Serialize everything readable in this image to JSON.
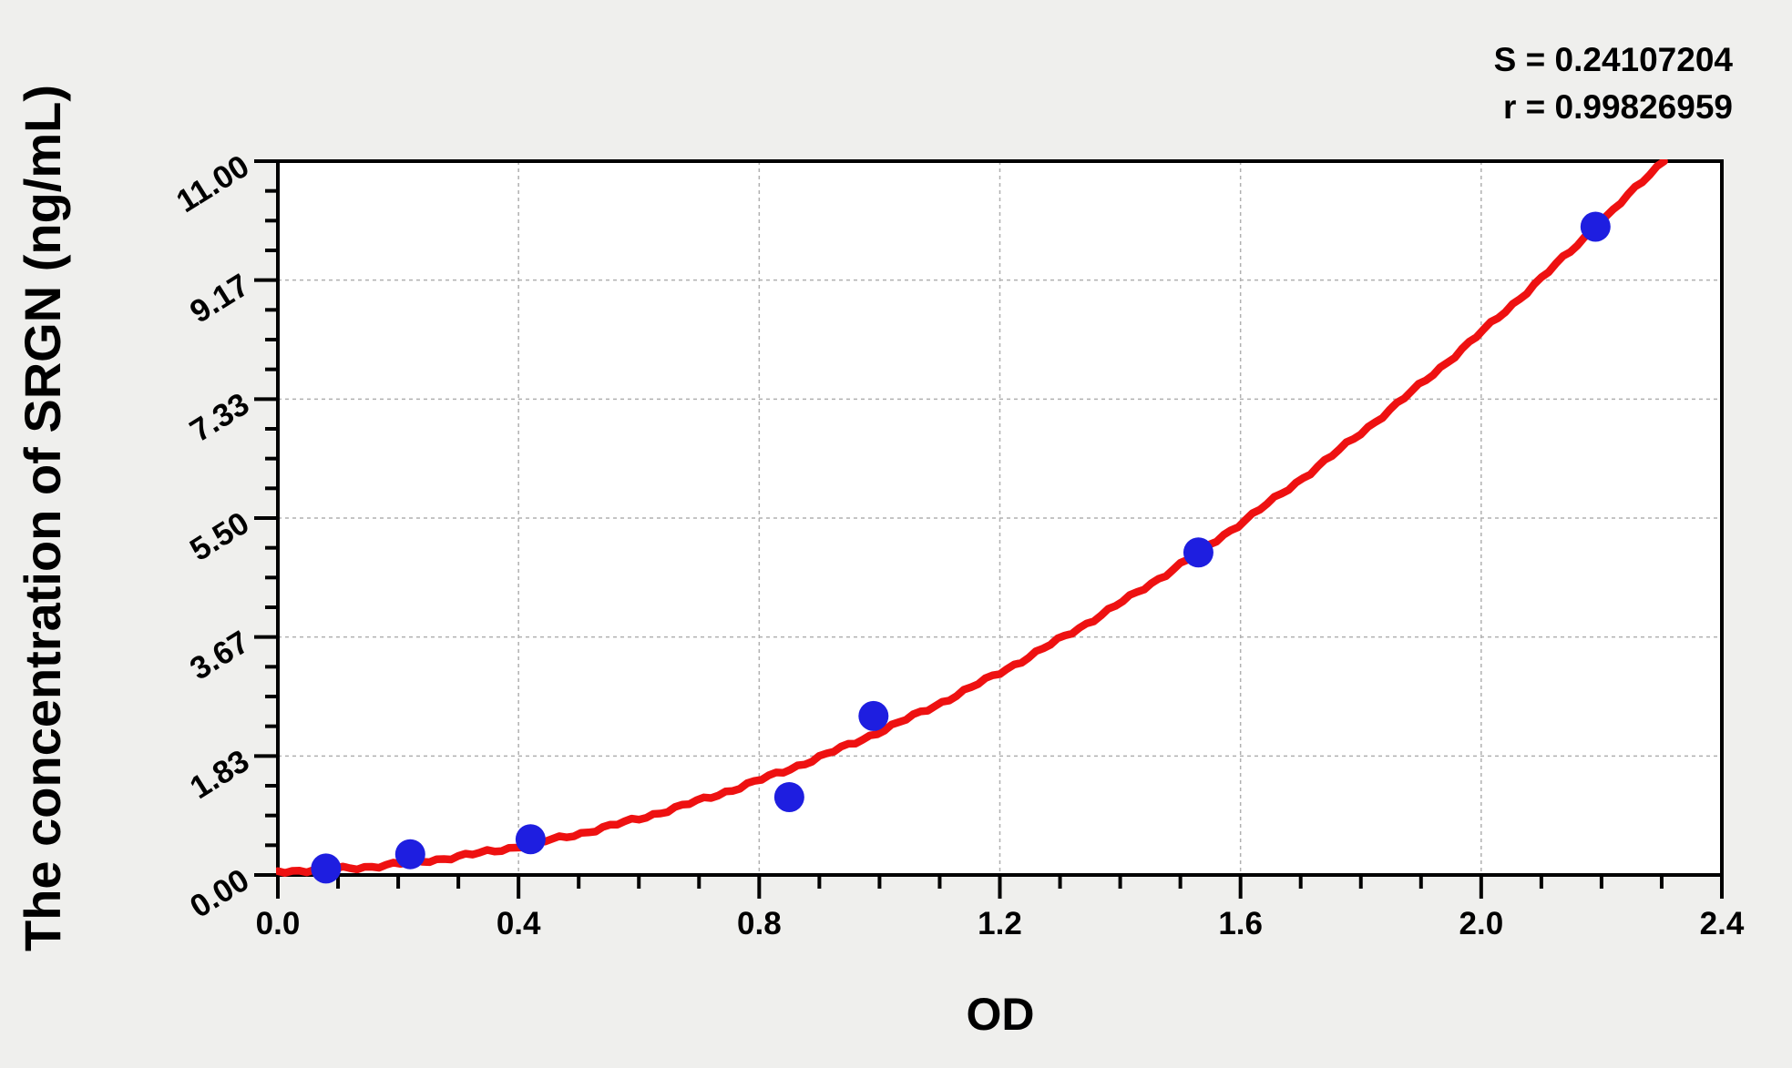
{
  "chart_data": {
    "type": "scatter",
    "title": "",
    "xlabel": "OD",
    "ylabel": "The concentration of SRGN (ng/mL)",
    "annotations": [
      "S = 0.24107204",
      "r = 0.99826959"
    ],
    "xlim": [
      0.0,
      2.4
    ],
    "ylim": [
      0.0,
      11.0
    ],
    "x_major_ticks": [
      0.0,
      0.4,
      0.8,
      1.2,
      1.6,
      2.0,
      2.4
    ],
    "x_tick_labels": [
      "0.0",
      "0.4",
      "0.8",
      "1.2",
      "1.6",
      "2.0",
      "2.4"
    ],
    "x_minor_step": 0.1,
    "y_major_ticks": [
      0.0,
      1.8333,
      3.6667,
      5.5,
      7.3333,
      9.1667,
      11.0
    ],
    "y_tick_labels": [
      "0.00",
      "1.83",
      "3.67",
      "5.50",
      "7.33",
      "9.17",
      "11.00"
    ],
    "y_minor_divisions_per_major": 4,
    "grid": "dashed-on-major-ticks",
    "legend": "none",
    "points": [
      {
        "x": 0.08,
        "y": 0.1
      },
      {
        "x": 0.22,
        "y": 0.32
      },
      {
        "x": 0.42,
        "y": 0.55
      },
      {
        "x": 0.85,
        "y": 1.2
      },
      {
        "x": 0.99,
        "y": 2.45
      },
      {
        "x": 1.53,
        "y": 4.97
      },
      {
        "x": 2.19,
        "y": 9.99
      }
    ],
    "fit_curve": {
      "model": "quadratic y = a*x^2 + b*x + c",
      "a": 2.0,
      "b": 0.15,
      "c": 0.06,
      "x_start": 0.0,
      "x_end": 2.312
    },
    "colors": {
      "point": "#1e1ee0",
      "curve": "#ee1111",
      "grid": "#b0b0b0",
      "axis": "#000000",
      "plot_background": "#ffffff",
      "page_background": "#efefed"
    }
  }
}
